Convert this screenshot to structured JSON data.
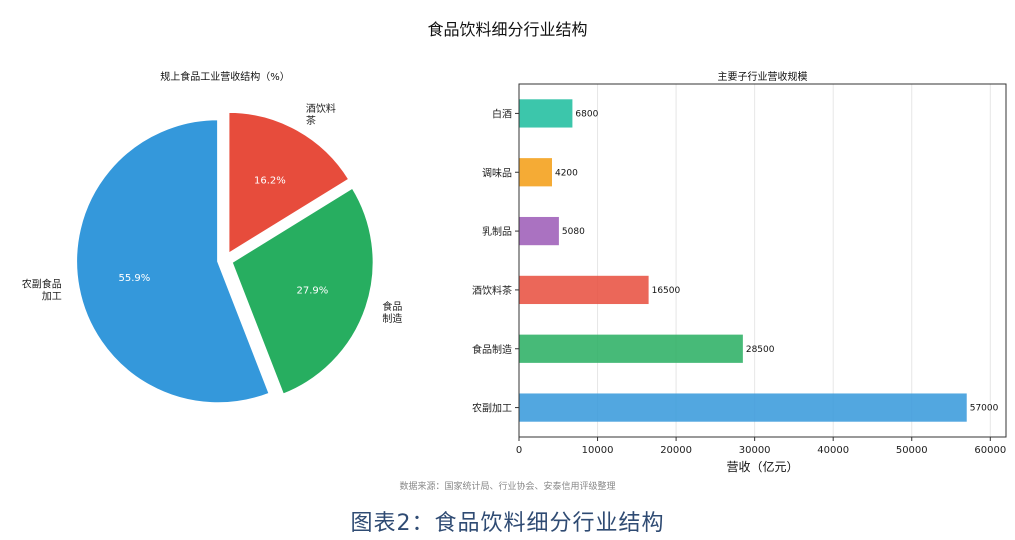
{
  "main_title": "食品饮料细分行业结构",
  "source": "数据来源：国家统计局、行业协会、安泰信用评级整理",
  "caption": "图表2：食品饮料细分行业结构",
  "chart_data": [
    {
      "type": "pie",
      "title": "规上食品工业营收结构（%）",
      "slices": [
        {
          "label": "农副食品\n加工",
          "value": 55.9,
          "display": "55.9%",
          "color": "#3498db"
        },
        {
          "label": "食品\n制造",
          "value": 27.9,
          "display": "27.9%",
          "color": "#27ae60"
        },
        {
          "label": "酒饮料\n茶",
          "value": 16.2,
          "display": "16.2%",
          "color": "#e74c3c"
        }
      ],
      "start_angle_deg": 90,
      "direction": "counterclockwise",
      "exploded": true
    },
    {
      "type": "bar",
      "orientation": "horizontal",
      "title": "主要子行业营收规模",
      "xlabel": "营收（亿元）",
      "ylabel": "",
      "xlim": [
        0,
        62000
      ],
      "xticks": [
        0,
        10000,
        20000,
        30000,
        40000,
        50000,
        60000
      ],
      "grid": "vertical",
      "categories": [
        "农副加工",
        "食品制造",
        "酒饮料茶",
        "乳制品",
        "调味品",
        "白酒"
      ],
      "values": [
        57000,
        28500,
        16500,
        5080,
        4200,
        6800
      ],
      "colors": [
        "#3498db",
        "#27ae60",
        "#e74c3c",
        "#9b59b6",
        "#f39c12",
        "#1abc9c"
      ]
    }
  ]
}
